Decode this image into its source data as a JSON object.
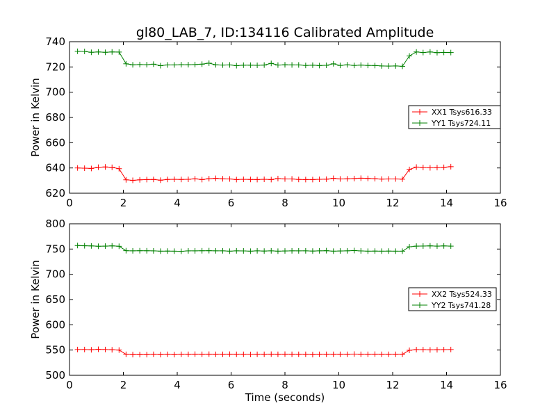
{
  "chart_data": [
    {
      "type": "line",
      "title": "gl80_LAB_7, ID:134116 Calibrated Amplitude",
      "xlabel": "",
      "ylabel": "Power in Kelvin",
      "xlim": [
        0,
        16
      ],
      "ylim": [
        620,
        740
      ],
      "xticks": [
        0,
        2,
        4,
        6,
        8,
        10,
        12,
        14,
        16
      ],
      "yticks": [
        620,
        640,
        660,
        680,
        700,
        720,
        740
      ],
      "grid": false,
      "legend_position": "right",
      "x": [
        0.3,
        0.56,
        0.81,
        1.07,
        1.33,
        1.58,
        1.84,
        2.1,
        2.35,
        2.61,
        2.87,
        3.12,
        3.38,
        3.64,
        3.89,
        4.15,
        4.41,
        4.66,
        4.92,
        5.18,
        5.43,
        5.69,
        5.95,
        6.2,
        6.46,
        6.72,
        6.97,
        7.23,
        7.49,
        7.74,
        8.0,
        8.26,
        8.51,
        8.77,
        9.03,
        9.28,
        9.54,
        9.8,
        10.05,
        10.31,
        10.57,
        10.82,
        11.08,
        11.34,
        11.59,
        11.85,
        12.11,
        12.36,
        12.62,
        12.88,
        13.13,
        13.39,
        13.65,
        13.9,
        14.16
      ],
      "series": [
        {
          "name": "XX1 Tsys616.33",
          "color": "#ff0000",
          "values": [
            640,
            639.8,
            639.6,
            640.6,
            640.8,
            640.5,
            639.4,
            630.6,
            630.2,
            630.6,
            630.8,
            630.9,
            630.3,
            630.9,
            631,
            630.9,
            631,
            631.4,
            630.8,
            631.5,
            631.8,
            631.4,
            631.3,
            630.8,
            631,
            630.9,
            630.8,
            631,
            630.8,
            631.6,
            631.3,
            631.3,
            630.9,
            630.8,
            630.8,
            631,
            631.1,
            631.8,
            631.3,
            631.4,
            631.6,
            631.9,
            631.7,
            631.5,
            631.2,
            631.3,
            631.3,
            631.1,
            638.8,
            640.7,
            640.4,
            640.1,
            640.3,
            640.5,
            641
          ]
        },
        {
          "name": "YY1 Tsys724.11",
          "color": "#008000",
          "values": [
            732.4,
            732.3,
            731.6,
            731.9,
            731.6,
            731.9,
            731.8,
            722.5,
            721.7,
            721.9,
            721.8,
            722.2,
            721,
            721.6,
            721.6,
            721.8,
            721.8,
            721.9,
            722.2,
            723,
            721.7,
            721.5,
            721.6,
            721,
            721.4,
            721.4,
            721.3,
            721.5,
            722.8,
            721.5,
            721.7,
            721.6,
            721.6,
            721.2,
            721.4,
            721.1,
            721.3,
            722.5,
            721.2,
            721.7,
            721.2,
            721.5,
            721.2,
            721.1,
            720.8,
            720.7,
            720.8,
            720.5,
            728.7,
            731.9,
            731.4,
            731.9,
            731.3,
            731.5,
            731.4
          ]
        }
      ]
    },
    {
      "type": "line",
      "title": "",
      "xlabel": "Time (seconds)",
      "ylabel": "Power in Kelvin",
      "xlim": [
        0,
        16
      ],
      "ylim": [
        500,
        800
      ],
      "xticks": [
        0,
        2,
        4,
        6,
        8,
        10,
        12,
        14,
        16
      ],
      "yticks": [
        500,
        550,
        600,
        650,
        700,
        750,
        800
      ],
      "grid": false,
      "legend_position": "right",
      "x": [
        0.3,
        0.56,
        0.81,
        1.07,
        1.33,
        1.58,
        1.84,
        2.1,
        2.35,
        2.61,
        2.87,
        3.12,
        3.38,
        3.64,
        3.89,
        4.15,
        4.41,
        4.66,
        4.92,
        5.18,
        5.43,
        5.69,
        5.95,
        6.2,
        6.46,
        6.72,
        6.97,
        7.23,
        7.49,
        7.74,
        8.0,
        8.26,
        8.51,
        8.77,
        9.03,
        9.28,
        9.54,
        9.8,
        10.05,
        10.31,
        10.57,
        10.82,
        11.08,
        11.34,
        11.59,
        11.85,
        12.11,
        12.36,
        12.62,
        12.88,
        13.13,
        13.39,
        13.65,
        13.9,
        14.16
      ],
      "series": [
        {
          "name": "XX2 Tsys524.33",
          "color": "#ff0000",
          "values": [
            551,
            551,
            550.5,
            551.5,
            551,
            550.5,
            550,
            541.5,
            541,
            541,
            541,
            541.5,
            541,
            541.5,
            541,
            541.5,
            541.5,
            541.8,
            541.5,
            541.8,
            541.5,
            541.5,
            541.8,
            541.5,
            541.5,
            541.3,
            541.5,
            541.5,
            541.8,
            541.5,
            541.8,
            541.5,
            541.5,
            541.5,
            541,
            541.5,
            541.5,
            541.5,
            541.5,
            541.5,
            542,
            541.5,
            541.5,
            541.8,
            541.5,
            541.5,
            541.5,
            541.5,
            549.5,
            550.8,
            550.8,
            550.3,
            550.5,
            550.8,
            551
          ]
        },
        {
          "name": "YY2 Tsys741.28",
          "color": "#008000",
          "values": [
            757,
            756.5,
            756.2,
            755.5,
            755.8,
            756.3,
            755.5,
            746.8,
            746.5,
            746.7,
            746.6,
            746.4,
            745.8,
            746,
            745.8,
            745.5,
            746.4,
            746.4,
            746.6,
            746.8,
            746.5,
            746.5,
            745.8,
            746.5,
            746.3,
            745.8,
            746.5,
            746,
            746.5,
            745.8,
            746.2,
            746.5,
            746.4,
            746.5,
            746,
            746.5,
            746.8,
            745.8,
            746.2,
            746.5,
            747,
            746.3,
            745.8,
            746,
            745.8,
            746,
            745.8,
            745.8,
            754.5,
            755.8,
            756,
            756.3,
            755.8,
            756.2,
            755.8
          ]
        }
      ]
    }
  ]
}
